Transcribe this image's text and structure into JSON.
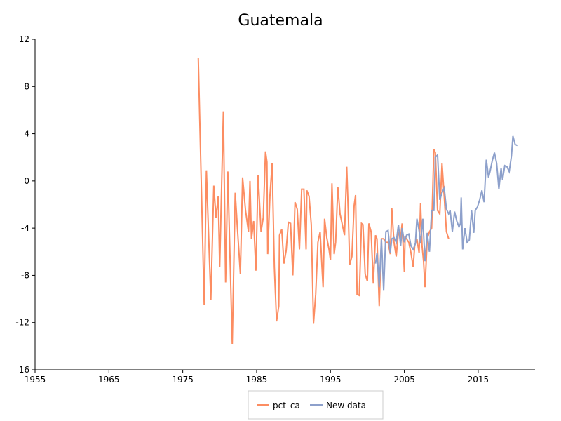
{
  "chart_data": {
    "type": "line",
    "title": "Guatemala",
    "xlim": [
      1955,
      2022.7
    ],
    "xticks": [
      1955,
      1965,
      1975,
      1985,
      1995,
      2005,
      2015
    ],
    "ylim": [
      -16,
      12
    ],
    "yticks": [
      -16,
      -12,
      -8,
      -4,
      0,
      4,
      8,
      12
    ],
    "grid": false,
    "legend": "bottom",
    "series": [
      {
        "name": "pct_ca",
        "color": "#fc8d62",
        "x": [
          1977.1,
          1977.9,
          1978.2,
          1978.8,
          1979.2,
          1979.5,
          1979.8,
          1980.0,
          1980.5,
          1980.8,
          1981.1,
          1981.7,
          1982.1,
          1982.4,
          1982.8,
          1983.1,
          1983.5,
          1983.9,
          1984.1,
          1984.3,
          1984.6,
          1984.9,
          1985.2,
          1985.6,
          1985.9,
          1986.2,
          1986.4,
          1986.5,
          1986.8,
          1987.1,
          1987.4,
          1987.7,
          1988.0,
          1988.1,
          1988.4,
          1988.7,
          1989.0,
          1989.3,
          1989.6,
          1989.9,
          1990.2,
          1990.5,
          1990.8,
          1991.1,
          1991.4,
          1991.7,
          1991.8,
          1992.1,
          1992.4,
          1992.7,
          1993.0,
          1993.3,
          1993.6,
          1993.9,
          1994.0,
          1994.2,
          1994.5,
          1994.8,
          1995.0,
          1995.2,
          1995.5,
          1995.7,
          1996.0,
          1996.3,
          1996.6,
          1996.9,
          1997.2,
          1997.4,
          1997.6,
          1997.9,
          1998.2,
          1998.4,
          1998.6,
          1998.9,
          1999.2,
          1999.4,
          1999.7,
          2000.0,
          2000.2,
          2000.5,
          2000.8,
          2001.1,
          2001.3,
          2001.6,
          2001.9,
          2002.2,
          2002.5,
          2002.8,
          2003.1,
          2003.3,
          2003.6,
          2003.9,
          2004.2,
          2004.5,
          2004.7,
          2005.0,
          2005.1,
          2005.3,
          2005.6,
          2005.9,
          2006.2,
          2006.4,
          2006.7,
          2007.0,
          2007.2,
          2007.4,
          2007.6,
          2007.8,
          2008.1,
          2008.4,
          2008.7,
          2009.0,
          2009.2,
          2009.5,
          2009.8,
          2010.1,
          2010.4,
          2010.7,
          2011.0
        ],
        "values": [
          10.4,
          -10.5,
          0.9,
          -10.1,
          -0.4,
          -3.1,
          -1.3,
          -7.3,
          5.9,
          -8.6,
          0.8,
          -13.8,
          -1.0,
          -4.0,
          -7.9,
          0.3,
          -2.5,
          -4.3,
          0,
          -4.9,
          -3.4,
          -7.6,
          0.5,
          -4.3,
          -3.1,
          2.5,
          1.6,
          -6.2,
          -1.3,
          1.5,
          -7.3,
          -11.9,
          -10.6,
          -4.6,
          -4.1,
          -7.0,
          -5.9,
          -3.5,
          -3.6,
          -8.0,
          -1.8,
          -2.4,
          -5.8,
          -0.7,
          -0.7,
          -5.8,
          -0.8,
          -1.3,
          -3.7,
          -12.1,
          -9.6,
          -5.2,
          -4.3,
          -7.9,
          -9.0,
          -3.2,
          -4.8,
          -5.8,
          -6.7,
          -0.2,
          -6.2,
          -5.2,
          -0.5,
          -2.8,
          -3.7,
          -4.6,
          1.2,
          -2.5,
          -7.1,
          -6.4,
          -2.1,
          -1.2,
          -9.6,
          -9.7,
          -3.6,
          -3.7,
          -7.9,
          -8.5,
          -3.6,
          -4.3,
          -8.7,
          -4.6,
          -4.9,
          -10.6,
          -4.9,
          -4.9,
          -5.2,
          -5.2,
          -6.2,
          -2.3,
          -5.2,
          -6.4,
          -4.3,
          -4.8,
          -3.6,
          -7.7,
          -4.8,
          -4.9,
          -5.2,
          -6.1,
          -7.3,
          -5.5,
          -4.9,
          -6.1,
          -1.9,
          -5.5,
          -6.8,
          -9.0,
          -4.9,
          -4.3,
          -4.0,
          2.7,
          2.4,
          -2.5,
          -2.8,
          1.5,
          -1.3,
          -4.3,
          -4.9
        ]
      },
      {
        "name": "New data",
        "color": "#8da0cb",
        "x": [
          2001.1,
          2001.3,
          2001.6,
          2001.9,
          2002.2,
          2002.5,
          2002.8,
          2003.1,
          2003.3,
          2003.6,
          2003.9,
          2004.2,
          2004.5,
          2004.7,
          2005.0,
          2005.3,
          2005.6,
          2005.9,
          2006.2,
          2006.5,
          2006.7,
          2007.0,
          2007.2,
          2007.5,
          2007.8,
          2008.1,
          2008.4,
          2008.7,
          2009.0,
          2009.2,
          2009.5,
          2009.8,
          2010.1,
          2010.4,
          2010.7,
          2011.0,
          2011.2,
          2011.5,
          2011.8,
          2012.1,
          2012.4,
          2012.6,
          2012.7,
          2012.9,
          2013.2,
          2013.5,
          2013.8,
          2014.1,
          2014.4,
          2014.6,
          2014.9,
          2015.2,
          2015.5,
          2015.8,
          2016.1,
          2016.4,
          2016.6,
          2016.9,
          2017.2,
          2017.5,
          2017.8,
          2018.1,
          2018.3,
          2018.6,
          2018.9,
          2019.2,
          2019.5,
          2019.7,
          2020.0,
          2020.3
        ],
        "values": [
          -7.0,
          -6.1,
          -9.0,
          -4.9,
          -9.3,
          -4.3,
          -4.2,
          -6.1,
          -4.9,
          -4.8,
          -5.2,
          -3.7,
          -5.5,
          -4.0,
          -5.2,
          -4.6,
          -4.5,
          -5.5,
          -5.8,
          -5.3,
          -3.2,
          -4.2,
          -5.3,
          -3.2,
          -6.8,
          -4.4,
          -6.0,
          -2.5,
          -2.5,
          2.0,
          2.2,
          -1.6,
          -1.0,
          -0.6,
          -2.4,
          -2.8,
          -2.5,
          -4.3,
          -2.6,
          -3.4,
          -3.9,
          -3.6,
          -1.4,
          -5.8,
          -4.0,
          -5.2,
          -5.0,
          -2.5,
          -4.4,
          -2.5,
          -2.2,
          -1.6,
          -0.8,
          -1.8,
          1.8,
          0.3,
          0.8,
          1.7,
          2.4,
          1.5,
          -0.7,
          1.1,
          0.1,
          1.3,
          1.2,
          0.8,
          2.1,
          3.8,
          3.1,
          3.0
        ]
      }
    ]
  }
}
